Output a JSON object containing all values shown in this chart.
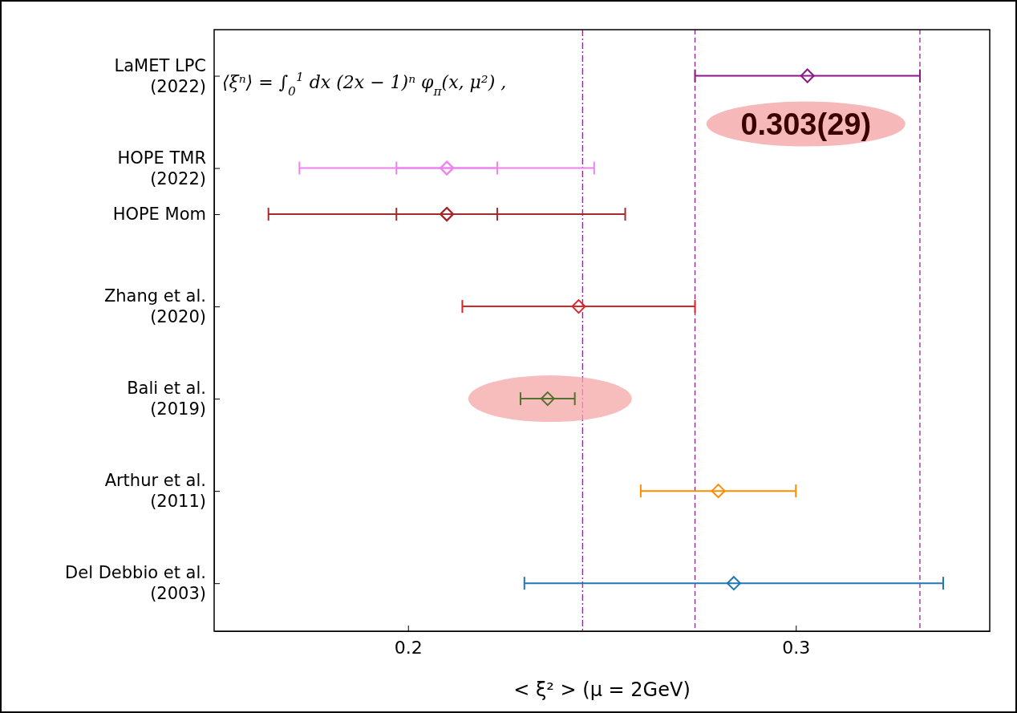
{
  "chart_data": {
    "type": "scatter",
    "orientation": "horizontal",
    "xlabel": "< ξ² > (μ = 2GeV)",
    "xlim": [
      0.15,
      0.35
    ],
    "xticks": [
      0.2,
      0.3
    ],
    "categories": [
      "LaMET LPC\n(2022)",
      null,
      "HOPE TMR\n(2022)",
      "HOPE Mom",
      null,
      "Zhang et al.\n(2020)",
      null,
      "Bali et al.\n(2019)",
      null,
      "Arthur et al.\n(2011)",
      null,
      "Del Debbio et al.\n(2003)"
    ],
    "marker": "diamond",
    "grid": false,
    "series": [
      {
        "values": [
          0.303,
          null,
          0.21,
          0.21,
          null,
          0.244,
          null,
          0.236,
          null,
          0.28,
          null,
          0.284
        ],
        "errors": [
          0.029,
          null,
          0.038,
          0.046,
          null,
          0.03,
          null,
          0.007,
          null,
          0.02,
          null,
          0.054
        ],
        "colors": [
          "#8b178b",
          null,
          "#ee82ee",
          "#a52a2a",
          null,
          "#d62728",
          null,
          "#55702f",
          null,
          "#ff8c00",
          null,
          "#1f77b4"
        ]
      },
      {
        "values": [
          null,
          null,
          0.21,
          0.21,
          null,
          null,
          null,
          null,
          null,
          null,
          null,
          null
        ],
        "errors": [
          null,
          null,
          0.013,
          0.013,
          null,
          null,
          null,
          null,
          null,
          null,
          null,
          null
        ],
        "colors": [
          null,
          null,
          "#ee82ee",
          "#a52a2a",
          null,
          null,
          null,
          null,
          null,
          null,
          null,
          null
        ]
      }
    ],
    "ref_lines": [
      {
        "axis": "x",
        "value": 0.245,
        "color": "#8b178b",
        "line_style": "dashdot"
      },
      {
        "axis": "x",
        "value": 0.274,
        "color": "#8b178b",
        "line_style": "dashed"
      },
      {
        "axis": "x",
        "value": 0.332,
        "color": "#8b178b",
        "line_style": "dashed"
      }
    ],
    "annotations": [
      "⟨ξⁿ⟩ = ∫$_{0}$$^{1}$ dx (2x − 1)ⁿ φ$_{π}$(x, μ²) ,",
      {
        "text": "0.303(29)",
        "x": 0.303,
        "y": "LaMET LPC\n(2022)"
      }
    ]
  }
}
